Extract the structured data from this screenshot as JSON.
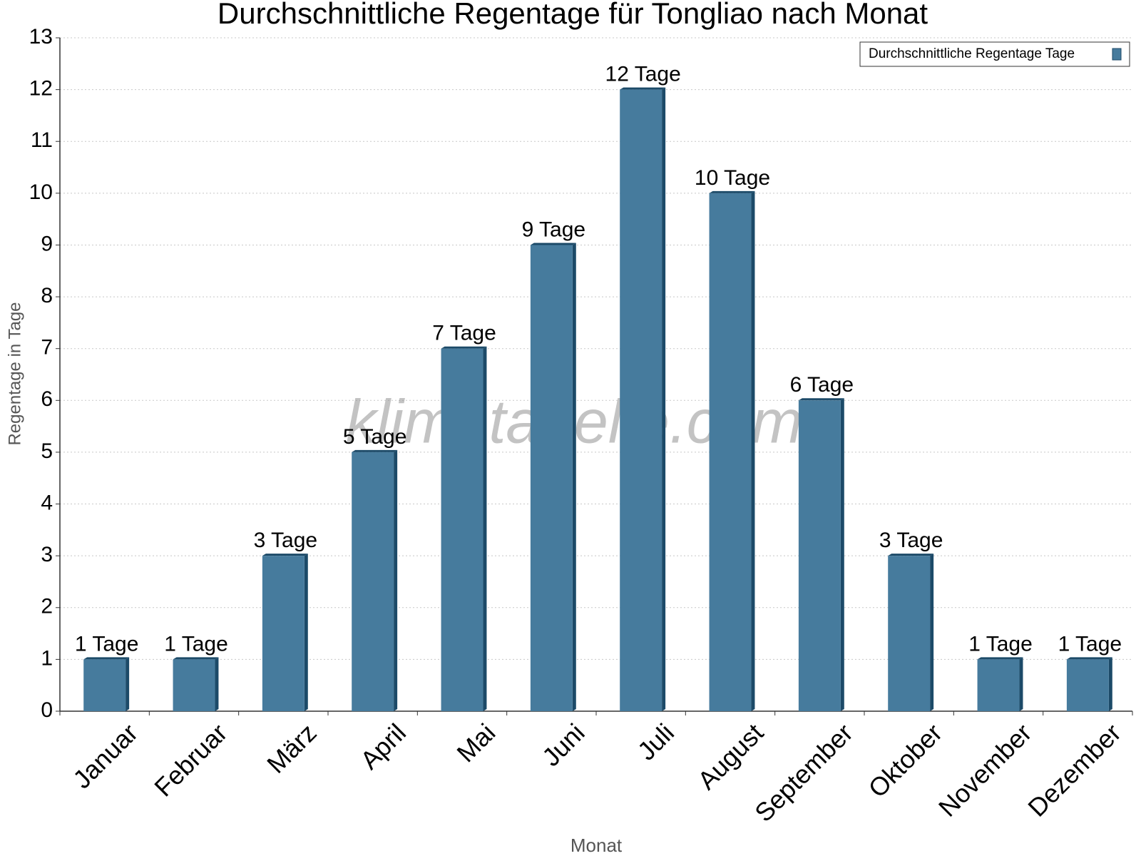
{
  "chart_data": {
    "type": "bar",
    "title": "Durchschnittliche Regentage für Tongliao nach Monat",
    "x_label": "Monat",
    "y_label": "Regentage in Tage",
    "watermark": "klimatabelle.com",
    "categories": [
      "Januar",
      "Februar",
      "März",
      "April",
      "Mai",
      "Juni",
      "Juli",
      "August",
      "September",
      "Oktober",
      "November",
      "Dezember"
    ],
    "series": [
      {
        "name": "Durchschnittliche Regentage Tage",
        "color": "#467b9d",
        "values": [
          1,
          1,
          3,
          5,
          7,
          9,
          12,
          10,
          6,
          3,
          1,
          1
        ],
        "value_labels": [
          "1 Tage",
          "1 Tage",
          "3 Tage",
          "5 Tage",
          "7 Tage",
          "9 Tage",
          "12 Tage",
          "10 Tage",
          "6 Tage",
          "3 Tage",
          "1 Tage",
          "1 Tage"
        ]
      }
    ],
    "ylim": [
      0,
      13
    ],
    "yticks": [
      0,
      1,
      2,
      3,
      4,
      5,
      6,
      7,
      8,
      9,
      10,
      11,
      12,
      13
    ],
    "grid": true,
    "legend": "top-right"
  }
}
